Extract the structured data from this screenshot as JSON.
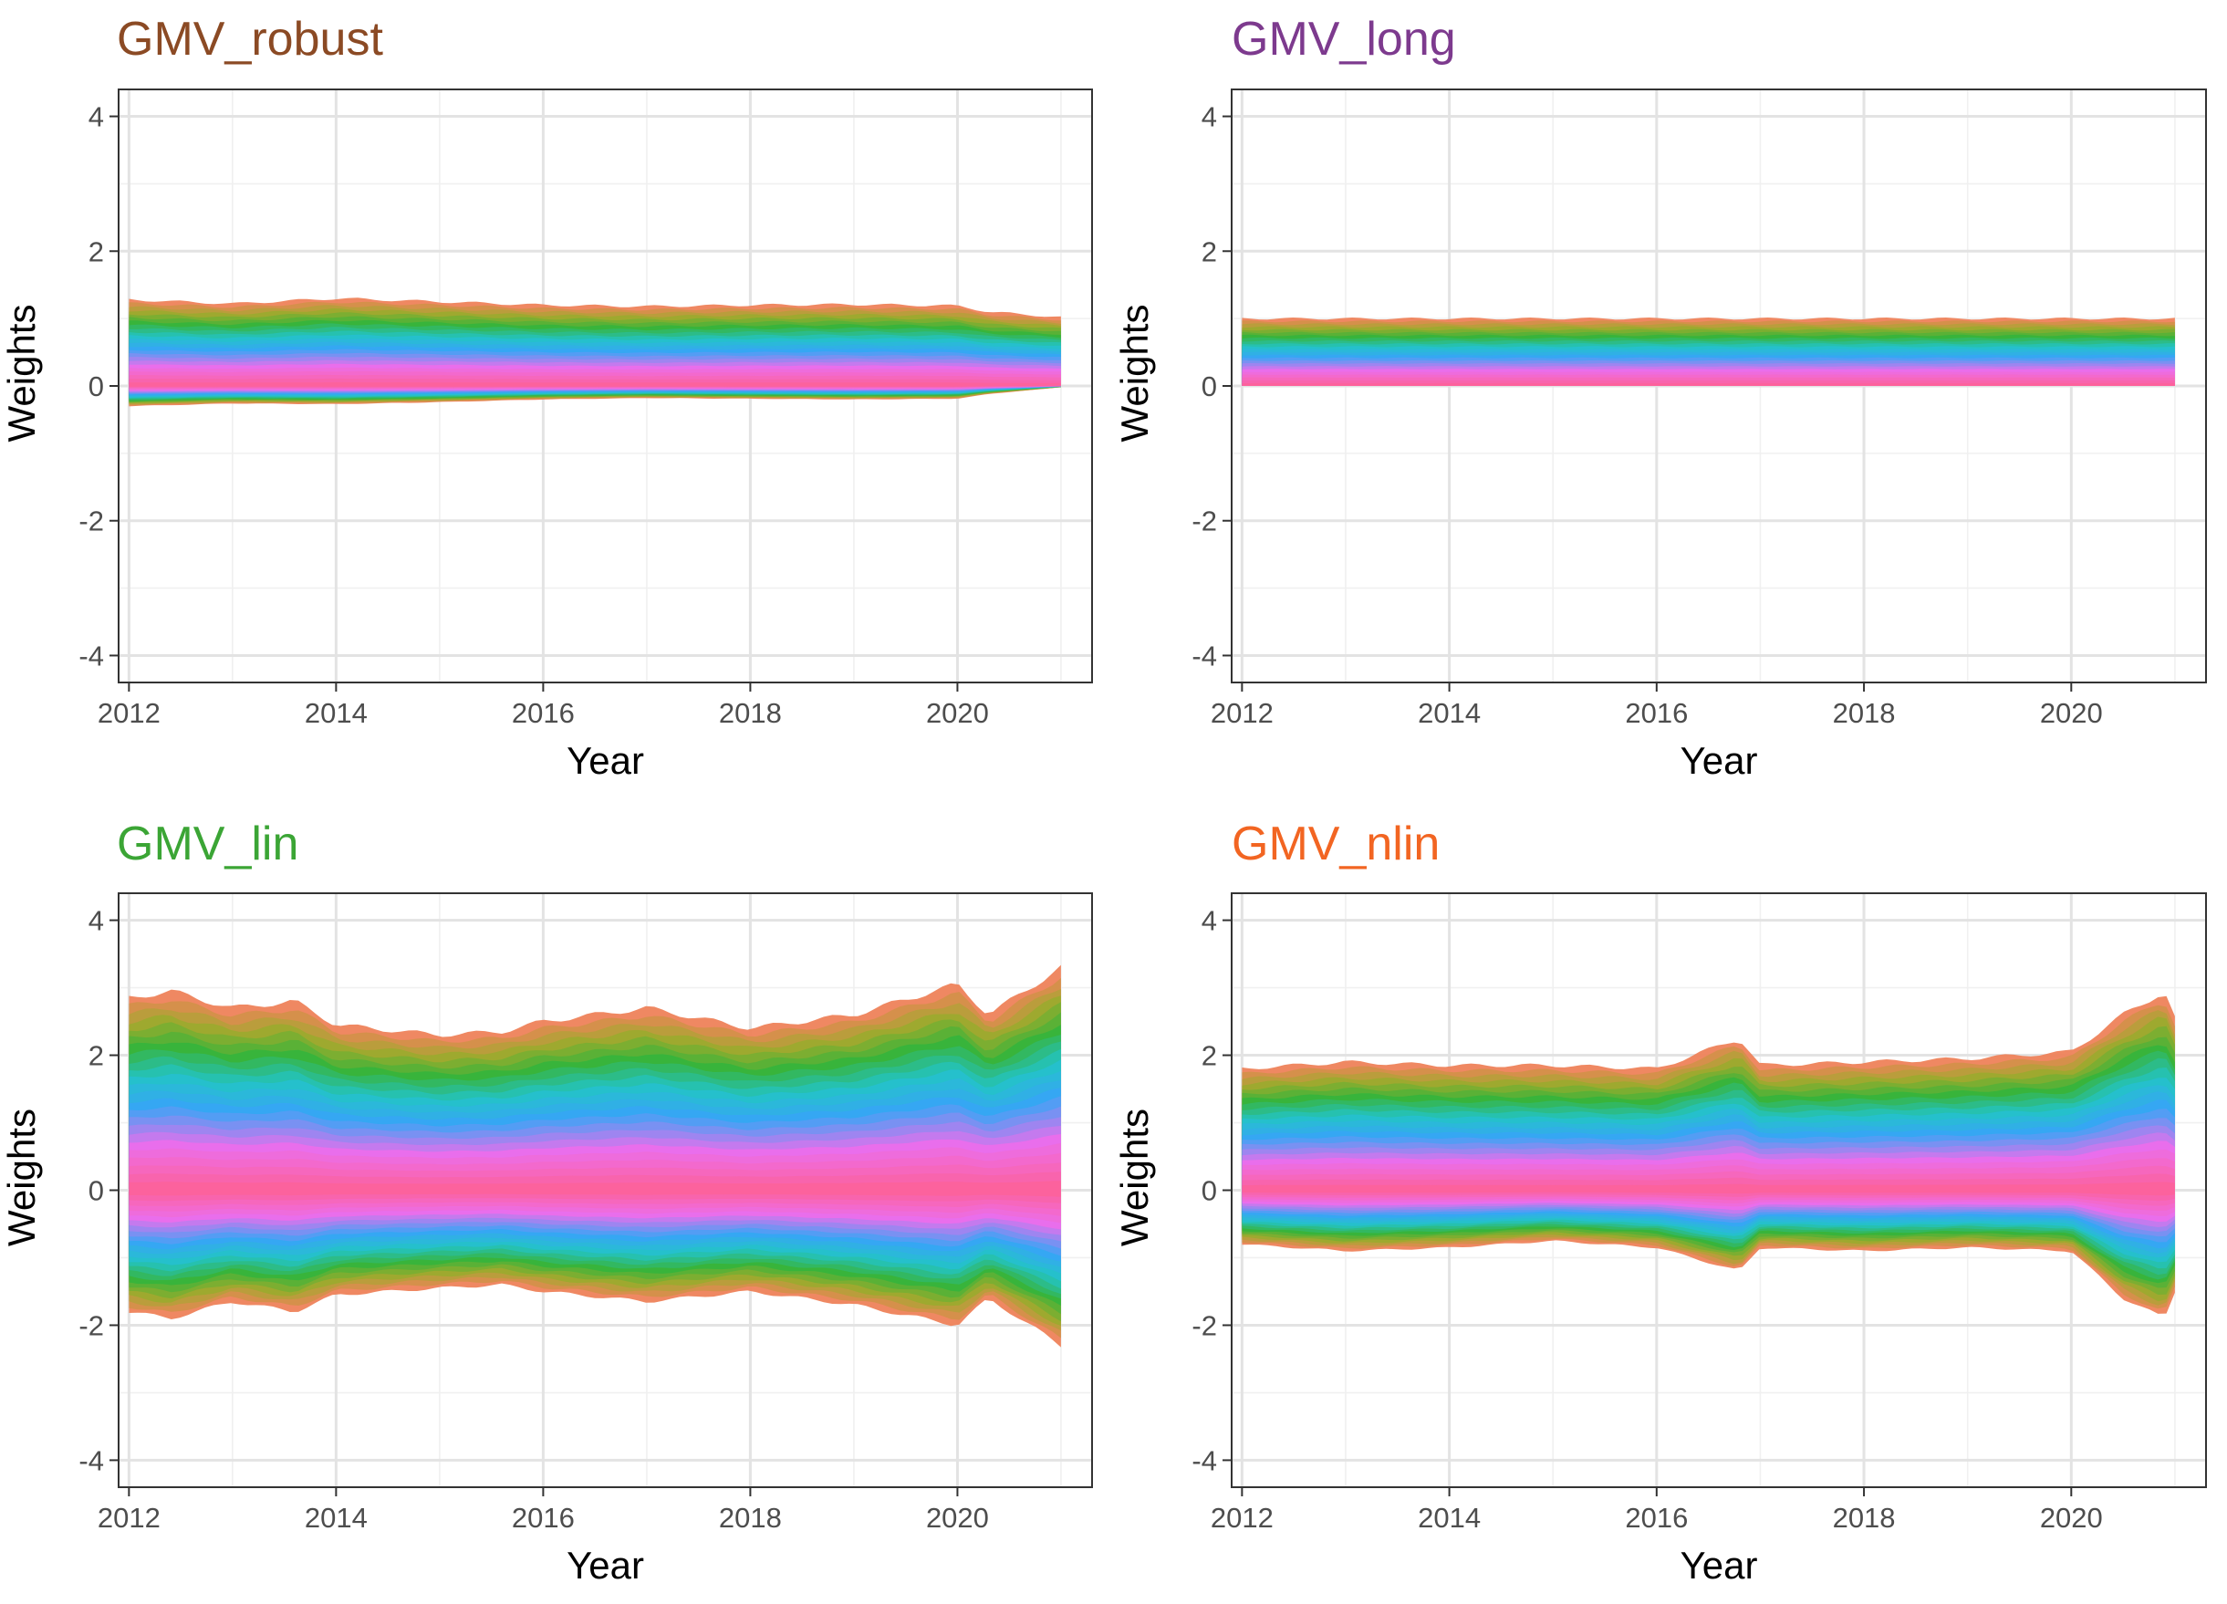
{
  "chart_data": [
    {
      "type": "area",
      "stacked": true,
      "title": "GMV_robust",
      "title_color": "#8B4A24",
      "xlabel": "Year",
      "ylabel": "Weights",
      "xlim": [
        2011.9,
        2021.3
      ],
      "ylim": [
        -4.4,
        4.4
      ],
      "x_ticks": [
        2012,
        2014,
        2016,
        2018,
        2020
      ],
      "y_ticks": [
        -4,
        -2,
        0,
        2,
        4
      ],
      "n_assets": 100,
      "series_summary": [
        {
          "name": "sum_of_positive_weights",
          "x": [
            2012,
            2013,
            2014,
            2015,
            2016,
            2017,
            2018,
            2019,
            2020,
            2020.3,
            2021
          ],
          "values": [
            1.28,
            1.22,
            1.3,
            1.25,
            1.2,
            1.18,
            1.2,
            1.21,
            1.19,
            1.1,
            1.02
          ]
        },
        {
          "name": "sum_of_negative_weights",
          "x": [
            2012,
            2013,
            2014,
            2015,
            2016,
            2017,
            2018,
            2019,
            2020,
            2020.3,
            2021
          ],
          "values": [
            -0.3,
            -0.26,
            -0.27,
            -0.24,
            -0.2,
            -0.18,
            -0.19,
            -0.2,
            -0.19,
            -0.12,
            -0.02
          ]
        }
      ]
    },
    {
      "type": "area",
      "stacked": true,
      "title": "GMV_long",
      "title_color": "#7D3A8E",
      "xlabel": "Year",
      "ylabel": "Weights",
      "xlim": [
        2011.9,
        2021.3
      ],
      "ylim": [
        -4.4,
        4.4
      ],
      "x_ticks": [
        2012,
        2014,
        2016,
        2018,
        2020
      ],
      "y_ticks": [
        -4,
        -2,
        0,
        2,
        4
      ],
      "n_assets": 100,
      "series_summary": [
        {
          "name": "sum_of_positive_weights",
          "x": [
            2012,
            2013,
            2014,
            2015,
            2016,
            2017,
            2018,
            2019,
            2020,
            2021
          ],
          "values": [
            1,
            1,
            1,
            1,
            1,
            1,
            1,
            1,
            1,
            1
          ]
        },
        {
          "name": "sum_of_negative_weights",
          "x": [
            2012,
            2013,
            2014,
            2015,
            2016,
            2017,
            2018,
            2019,
            2020,
            2021
          ],
          "values": [
            0,
            0,
            0,
            0,
            0,
            0,
            0,
            0,
            0,
            0
          ]
        }
      ]
    },
    {
      "type": "area",
      "stacked": true,
      "title": "GMV_lin",
      "title_color": "#3BA535",
      "xlabel": "Year",
      "ylabel": "Weights",
      "xlim": [
        2011.9,
        2021.3
      ],
      "ylim": [
        -4.4,
        4.4
      ],
      "x_ticks": [
        2012,
        2014,
        2016,
        2018,
        2020
      ],
      "y_ticks": [
        -4,
        -2,
        0,
        2,
        4
      ],
      "n_assets": 100,
      "series_summary": [
        {
          "name": "sum_of_positive_weights",
          "x": [
            2012,
            2012.4,
            2013,
            2013.6,
            2014,
            2015,
            2015.6,
            2016,
            2017,
            2018,
            2019,
            2020,
            2020.3,
            2021
          ],
          "values": [
            2.85,
            2.95,
            2.7,
            2.8,
            2.45,
            2.3,
            2.35,
            2.5,
            2.7,
            2.4,
            2.6,
            3.05,
            2.6,
            3.3
          ]
        },
        {
          "name": "sum_of_negative_weights",
          "x": [
            2012,
            2012.4,
            2013,
            2013.6,
            2014,
            2015,
            2015.6,
            2016,
            2017,
            2018,
            2019,
            2020,
            2020.3,
            2021
          ],
          "values": [
            -1.8,
            -1.9,
            -1.65,
            -1.8,
            -1.55,
            -1.45,
            -1.4,
            -1.5,
            -1.65,
            -1.5,
            -1.7,
            -2.0,
            -1.6,
            -2.3
          ]
        }
      ]
    },
    {
      "type": "area",
      "stacked": true,
      "title": "GMV_nlin",
      "title_color": "#F26522",
      "xlabel": "Year",
      "ylabel": "Weights",
      "xlim": [
        2011.9,
        2021.3
      ],
      "ylim": [
        -4.4,
        4.4
      ],
      "x_ticks": [
        2012,
        2014,
        2016,
        2018,
        2020
      ],
      "y_ticks": [
        -4,
        -2,
        0,
        2,
        4
      ],
      "n_assets": 100,
      "series_summary": [
        {
          "name": "sum_of_positive_weights",
          "x": [
            2012,
            2013,
            2014,
            2015,
            2016,
            2016.8,
            2017,
            2018,
            2019,
            2020,
            2020.5,
            2020.9,
            2021
          ],
          "values": [
            1.8,
            1.9,
            1.85,
            1.85,
            1.8,
            2.25,
            1.85,
            1.9,
            1.95,
            2.05,
            2.6,
            2.95,
            2.55
          ]
        },
        {
          "name": "sum_of_negative_weights",
          "x": [
            2012,
            2013,
            2014,
            2015,
            2016,
            2016.8,
            2017,
            2018,
            2019,
            2020,
            2020.5,
            2020.9,
            2021
          ],
          "values": [
            -0.8,
            -0.9,
            -0.85,
            -0.75,
            -0.85,
            -1.2,
            -0.85,
            -0.9,
            -0.85,
            -0.9,
            -1.6,
            -1.9,
            -1.5
          ]
        }
      ]
    }
  ]
}
